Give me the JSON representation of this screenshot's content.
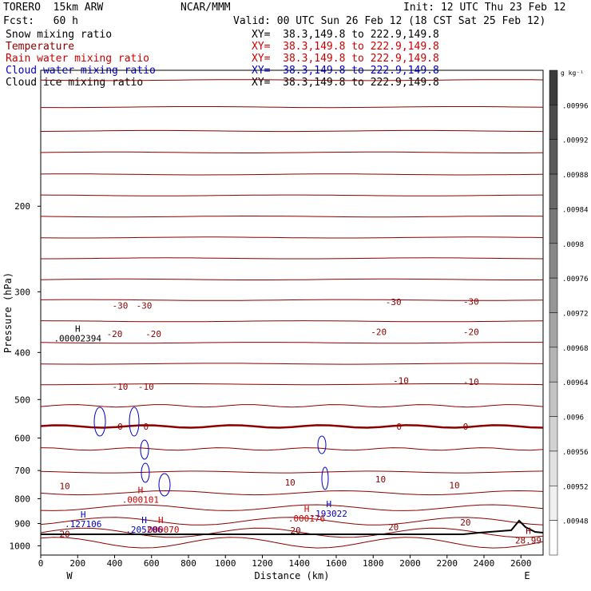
{
  "header": {
    "model": "TORERO  15km ARW",
    "org": "NCAR/MMM",
    "init": "Init: 12 UTC Thu 23 Feb 12",
    "fcst": "Fcst:   60 h",
    "valid": "Valid: 00 UTC Sun 26 Feb 12 (18 CST Sat 25 Feb 12)"
  },
  "fields": [
    {
      "label": "Snow mixing ratio",
      "xy": "XY=  38.3,149.8 to 222.9,149.8",
      "color": "#000000"
    },
    {
      "label": "Temperature",
      "xy": "XY=  38.3,149.8 to 222.9,149.8",
      "color": "#8b0000"
    },
    {
      "label": "Rain water mixing ratio",
      "xy": "XY=  38.3,149.8 to 222.9,149.8",
      "color": "#cc0000"
    },
    {
      "label": "Cloud water mixing ratio",
      "xy": "XY=  38.3,149.8 to 222.9,149.8",
      "color": "#0000cc"
    },
    {
      "label": "Cloud ice mixing ratio",
      "xy": "XY=  38.3,149.8 to 222.9,149.8",
      "color": "#000000"
    }
  ],
  "colorbar": {
    "unit": "g kg⁻¹",
    "labels": [
      ".00996",
      ".00992",
      ".00988",
      ".00984",
      ".0098",
      ".00976",
      ".00972",
      ".00968",
      ".00964",
      ".0096",
      ".00956",
      ".00952",
      ".00948"
    ]
  },
  "colors": {
    "temperature": "#8b0000",
    "rain": "#cc0000",
    "cloud_water": "#0000cc",
    "frame": "#000000"
  },
  "chart_data": {
    "type": "line",
    "xlabel": "Distance (km)",
    "ylabel": "Pressure (hPa)",
    "x_ticks": [
      "0",
      "200",
      "400",
      "600",
      "800",
      "1000",
      "1200",
      "1400",
      "1600",
      "1800",
      "2000",
      "2200",
      "2400",
      "2600"
    ],
    "y_ticks": [
      "200",
      "300",
      "400",
      "500",
      "600",
      "700",
      "800",
      "900",
      "1000"
    ],
    "xlim": [
      0,
      2720
    ],
    "ylim": [
      1045,
      105
    ],
    "y_scale": "log",
    "west_label": "W",
    "east_label": "E",
    "isotherm_pressures": [
      110,
      125,
      140,
      155,
      172,
      190,
      210,
      232,
      256,
      283,
      312,
      345,
      382,
      422,
      465,
      515,
      568,
      632,
      705,
      778,
      835,
      890,
      940,
      985
    ],
    "temperature_labels": [
      {
        "text": "-30",
        "x": 430,
        "p": 320
      },
      {
        "text": "-30",
        "x": 560,
        "p": 320
      },
      {
        "text": "-30",
        "x": 1910,
        "p": 315
      },
      {
        "text": "-30",
        "x": 2330,
        "p": 314
      },
      {
        "text": "-20",
        "x": 400,
        "p": 366
      },
      {
        "text": "-20",
        "x": 610,
        "p": 366
      },
      {
        "text": "-20",
        "x": 1830,
        "p": 363
      },
      {
        "text": "-20",
        "x": 2330,
        "p": 363
      },
      {
        "text": "-10",
        "x": 430,
        "p": 470
      },
      {
        "text": "-10",
        "x": 570,
        "p": 470
      },
      {
        "text": "-10",
        "x": 1950,
        "p": 457
      },
      {
        "text": "-10",
        "x": 2330,
        "p": 460
      },
      {
        "text": "0",
        "x": 430,
        "p": 568
      },
      {
        "text": "0",
        "x": 570,
        "p": 568
      },
      {
        "text": "0",
        "x": 1940,
        "p": 568
      },
      {
        "text": "0",
        "x": 2300,
        "p": 568
      },
      {
        "text": "10",
        "x": 130,
        "p": 753
      },
      {
        "text": "10",
        "x": 1350,
        "p": 740
      },
      {
        "text": "10",
        "x": 1840,
        "p": 730
      },
      {
        "text": "10",
        "x": 2240,
        "p": 750
      },
      {
        "text": "20",
        "x": 130,
        "p": 945
      },
      {
        "text": "20",
        "x": 1380,
        "p": 930
      },
      {
        "text": "20",
        "x": 1910,
        "p": 915
      },
      {
        "text": "20",
        "x": 2300,
        "p": 895
      }
    ],
    "extrema": [
      {
        "mark": "H",
        "value": ".00002394",
        "x": 200,
        "p": 378,
        "color": "#000000"
      },
      {
        "mark": "H",
        "value": ".000101",
        "x": 540,
        "p": 813,
        "color": "#cc0000"
      },
      {
        "mark": "H",
        "value": ".127106",
        "x": 230,
        "p": 912,
        "color": "#0000cc"
      },
      {
        "mark": "H",
        "value": ".205206",
        "x": 560,
        "p": 936,
        "color": "#0000cc"
      },
      {
        "mark": "H",
        "value": ".000070",
        "x": 650,
        "p": 936,
        "color": "#cc0000"
      },
      {
        "mark": "H",
        "value": ".193022",
        "x": 1560,
        "p": 868,
        "color": "#0000cc"
      },
      {
        "mark": "H",
        "value": ".000176",
        "x": 1440,
        "p": 888,
        "color": "#cc0000"
      },
      {
        "mark": "H",
        "value": "28.99",
        "x": 2640,
        "p": 985,
        "color": "#8b0000"
      }
    ]
  }
}
